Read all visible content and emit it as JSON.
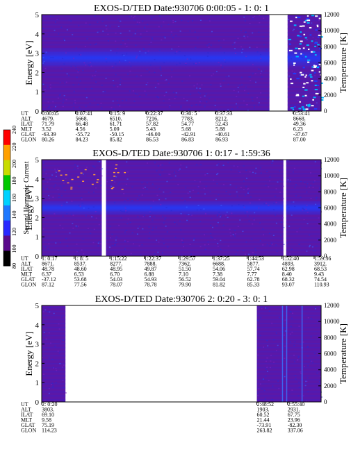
{
  "colors": {
    "background": "#ffffff",
    "spectrogram_base": "#5a18a8",
    "spectrogram_band": "#1e3cff",
    "colorbar": [
      "#000000",
      "#5a0a8c",
      "#2828ff",
      "#1e78ff",
      "#00d2ff",
      "#00c800",
      "#c8dc00",
      "#ffa000",
      "#ff0000"
    ]
  },
  "colorbar": {
    "label": "Second Harmonic Current",
    "ticks": [
      "80",
      "100",
      "120",
      "140",
      "160",
      "180",
      "200",
      "220",
      "240"
    ]
  },
  "chart_data": [
    {
      "type": "heatmap",
      "title": "EXOS-D/TED   Date:930706  0:00:05 - 1: 0: 1",
      "ylabel": "Energy [eV]",
      "ylabel_right": "Temperature [K]",
      "ylim": [
        0,
        5
      ],
      "ylim_right": [
        0,
        12000
      ],
      "yticks": [
        "0",
        "1",
        "2",
        "3",
        "4",
        "5"
      ],
      "yticks_right": [
        "0",
        "2000",
        "4000",
        "6000",
        "8000",
        "10000",
        "12000"
      ],
      "data_gaps": [
        [
          0.815,
          0.88
        ]
      ],
      "enhanced_band_ev": [
        2.2,
        3.3
      ],
      "ephemeris": {
        "labels": [
          "UT",
          "ALT",
          "ILAT",
          "MLT",
          "GLAT",
          "GLON"
        ],
        "columns": [
          {
            "pos": 0.0,
            "values": [
              "0:00:05",
              "4679.",
              "71.79",
              "3.52",
              "-63.39",
              "80.26"
            ]
          },
          {
            "pos": 0.121,
            "values": [
              "0:07:41",
              "5668.",
              "66.48",
              "4.56",
              "-55.72",
              "84.23"
            ]
          },
          {
            "pos": 0.243,
            "values": [
              "0:15: 9",
              "6510.",
              "61.71",
              "5.09",
              "-50.15",
              "85.82"
            ]
          },
          {
            "pos": 0.373,
            "values": [
              "0:22:37",
              "7216.",
              "57.82",
              "5.43",
              "-46.00",
              "86.53"
            ]
          },
          {
            "pos": 0.5,
            "values": [
              "0:30: 5",
              "7783.",
              "54.77",
              "5.68",
              "-42.91",
              "86.83"
            ]
          },
          {
            "pos": 0.622,
            "values": [
              "0:37:33",
              "8212.",
              "52.43",
              "5.88",
              "-40.61",
              "86.93"
            ]
          },
          {
            "pos": 0.9,
            "values": [
              "0:53:41",
              "8668.",
              "49.36",
              "6.23",
              "-37.67",
              "87.00"
            ]
          }
        ]
      }
    },
    {
      "type": "heatmap",
      "title": "EXOS-D/TED   Date:930706  1: 0:17 - 1:59:36",
      "ylabel": "Energy [eV]",
      "ylabel_right": "Temperature [K]",
      "ylim": [
        0,
        5
      ],
      "ylim_right": [
        0,
        12000
      ],
      "yticks": [
        "0",
        "1",
        "2",
        "3",
        "4",
        "5"
      ],
      "yticks_right": [
        "0",
        "2000",
        "4000",
        "6000",
        "8000",
        "10000",
        "12000"
      ],
      "data_gaps": [
        [
          0.215,
          0.23
        ],
        [
          0.865,
          0.875
        ]
      ],
      "enhanced_band_ev": [
        2.1,
        2.9
      ],
      "ephemeris": {
        "labels": [
          "UT",
          "ALT",
          "ILAT",
          "MLT",
          "GLAT",
          "GLON"
        ],
        "columns": [
          {
            "pos": 0.0,
            "values": [
              "1: 0:17",
              "8671.",
              "48.78",
              "6.37",
              "-37.12",
              "87.12"
            ]
          },
          {
            "pos": 0.116,
            "values": [
              "1: 8: 5",
              "8537.",
              "48.60",
              "6.53",
              "53.68",
              "77.56"
            ]
          },
          {
            "pos": 0.244,
            "values": [
              "1:15:22",
              "8277.",
              "48.95",
              "6.70",
              "54.03",
              "78.07"
            ]
          },
          {
            "pos": 0.367,
            "values": [
              "1:22:37",
              "7888.",
              "49.87",
              "6.88",
              "54.93",
              "78.78"
            ]
          },
          {
            "pos": 0.49,
            "values": [
              "1:29:57",
              "7362.",
              "51.50",
              "7.10",
              "56.52",
              "79.90"
            ]
          },
          {
            "pos": 0.612,
            "values": [
              "1:37:25",
              "6688.",
              "54.06",
              "7.38",
              "59.04",
              "81.82"
            ]
          },
          {
            "pos": 0.735,
            "values": [
              "1:44:53",
              "5877.",
              "57.74",
              "7.77",
              "62.78",
              "85.33"
            ]
          },
          {
            "pos": 0.86,
            "values": [
              "1:52:40",
              "4893.",
              "62.98",
              "8.40",
              "68.32",
              "93.07"
            ]
          },
          {
            "pos": 0.975,
            "values": [
              "1:59:36",
              "3912.",
              "68.53",
              "9.43",
              "74.54",
              "110.93"
            ]
          }
        ]
      }
    },
    {
      "type": "heatmap",
      "title": "EXOS-D/TED   Date:930706  2: 0:20 - 3: 0: 1",
      "ylabel": "Energy [eV]",
      "ylabel_right": "Temperature [K]",
      "ylim": [
        0,
        5
      ],
      "ylim_right": [
        0,
        12000
      ],
      "yticks": [
        "0",
        "1",
        "2",
        "3",
        "4",
        "5"
      ],
      "yticks_right": [
        "0",
        "2000",
        "4000",
        "6000",
        "8000",
        "10000",
        "12000"
      ],
      "data_gaps": [
        [
          0.085,
          0.77
        ]
      ],
      "enhanced_band_ev": [],
      "ephemeris": {
        "labels": [
          "UT",
          "ALT",
          "ILAT",
          "MLT",
          "GLAT",
          "GLON"
        ],
        "columns": [
          {
            "pos": 0.0,
            "values": [
              "2: 0:20",
              "3803.",
              "69.10",
              "9.58",
              "75.19",
              "114.23"
            ]
          },
          {
            "pos": 0.77,
            "values": [
              "2:48:52",
              "1903.",
              "60.52",
              "21.44",
              "-73.91",
              "263.82"
            ]
          },
          {
            "pos": 0.88,
            "values": [
              "2:55:40",
              "2931.",
              "67.75",
              "23.96",
              "-82.30",
              "337.06"
            ]
          }
        ]
      }
    }
  ]
}
